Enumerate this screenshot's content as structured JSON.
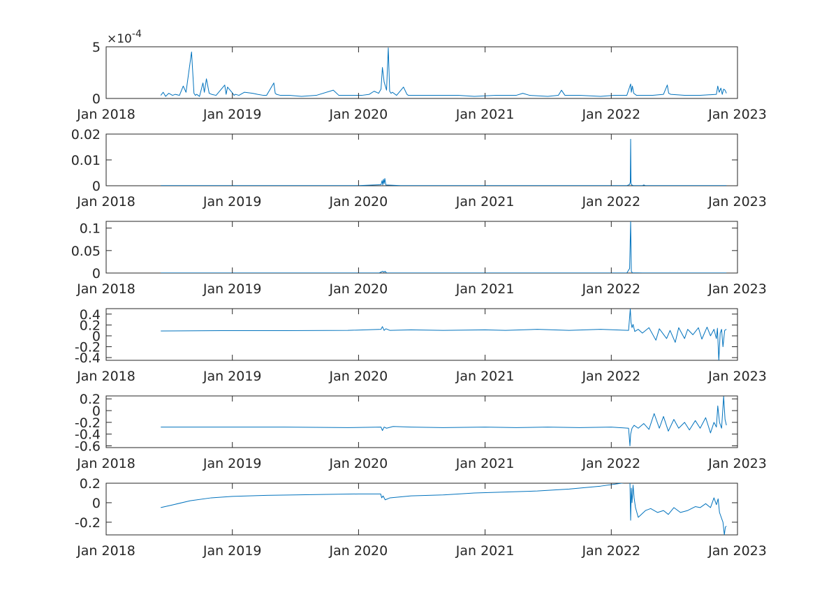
{
  "chart_data": [
    {
      "type": "line",
      "exponent_label": {
        "base": "×10",
        "power": "-4"
      },
      "x_range": [
        "2018-01-01",
        "2023-01-01"
      ],
      "x_ticks": [
        "Jan 2018",
        "Jan 2019",
        "Jan 2020",
        "Jan 2021",
        "Jan 2022",
        "Jan 2023"
      ],
      "ylim": [
        0,
        5
      ],
      "y_ticks": [
        0,
        5
      ],
      "y_tick_labels": [
        "0",
        "5"
      ],
      "grid": false,
      "series": [
        {
          "x": [
            "2018-06-08",
            "2018-06-15",
            "2018-06-22",
            "2018-07-01",
            "2018-07-12",
            "2018-07-20",
            "2018-08-01",
            "2018-08-12",
            "2018-08-20",
            "2018-09-05",
            "2018-09-12",
            "2018-09-16",
            "2018-09-20",
            "2018-09-28",
            "2018-10-08",
            "2018-10-12",
            "2018-10-18",
            "2018-10-26",
            "2018-11-02",
            "2018-11-15",
            "2018-12-10",
            "2018-12-14",
            "2018-12-18",
            "2019-01-02",
            "2019-01-06",
            "2019-01-10",
            "2019-01-20",
            "2019-02-05",
            "2019-03-01",
            "2019-03-15",
            "2019-04-01",
            "2019-04-10",
            "2019-05-01",
            "2019-05-05",
            "2019-05-09",
            "2019-05-20",
            "2019-06-15",
            "2019-07-20",
            "2019-09-01",
            "2019-10-20",
            "2019-11-05",
            "2019-11-12",
            "2019-12-01",
            "2020-01-10",
            "2020-02-01",
            "2020-02-15",
            "2020-02-28",
            "2020-03-06",
            "2020-03-10",
            "2020-03-15",
            "2020-03-22",
            "2020-03-27",
            "2020-03-31",
            "2020-04-04",
            "2020-04-08",
            "2020-04-20",
            "2020-05-10",
            "2020-05-20",
            "2020-05-24",
            "2020-06-10",
            "2020-07-15",
            "2020-09-01",
            "2020-10-15",
            "2020-12-01",
            "2021-02-01",
            "2021-04-01",
            "2021-04-20",
            "2021-05-10",
            "2021-07-01",
            "2021-08-01",
            "2021-08-10",
            "2021-08-20",
            "2021-10-01",
            "2021-12-01",
            "2022-01-10",
            "2022-02-15",
            "2022-02-26",
            "2022-02-28",
            "2022-03-03",
            "2022-03-07",
            "2022-03-15",
            "2022-04-10",
            "2022-05-01",
            "2022-06-01",
            "2022-06-12",
            "2022-06-16",
            "2022-06-22",
            "2022-08-01",
            "2022-09-15",
            "2022-11-01",
            "2022-11-05",
            "2022-11-09",
            "2022-11-14",
            "2022-11-18",
            "2022-11-22",
            "2022-11-26",
            "2022-11-30"
          ],
          "y": [
            0.3,
            0.6,
            0.2,
            0.5,
            0.3,
            0.4,
            0.3,
            1.2,
            0.6,
            4.5,
            0.5,
            0.3,
            0.4,
            0.2,
            1.5,
            0.6,
            1.9,
            0.5,
            0.4,
            0.3,
            1.3,
            0.4,
            1.1,
            0.5,
            0.3,
            0.4,
            0.3,
            0.6,
            0.5,
            0.4,
            0.3,
            0.3,
            1.5,
            0.5,
            0.4,
            0.3,
            0.3,
            0.2,
            0.3,
            0.8,
            0.3,
            0.3,
            0.3,
            0.3,
            0.4,
            0.7,
            0.5,
            0.9,
            3.0,
            1.6,
            0.8,
            4.9,
            0.7,
            0.5,
            0.6,
            0.3,
            1.1,
            0.4,
            0.3,
            0.3,
            0.3,
            0.3,
            0.3,
            0.2,
            0.3,
            0.3,
            0.5,
            0.3,
            0.2,
            0.3,
            0.8,
            0.3,
            0.3,
            0.2,
            0.3,
            0.3,
            1.4,
            0.6,
            1.2,
            0.5,
            0.3,
            0.3,
            0.3,
            0.4,
            1.3,
            0.5,
            0.4,
            0.3,
            0.3,
            0.4,
            1.2,
            0.6,
            1.0,
            0.4,
            0.9,
            0.8,
            0.5
          ]
        }
      ]
    },
    {
      "type": "line",
      "x_range": [
        "2018-01-01",
        "2023-01-01"
      ],
      "x_ticks": [
        "Jan 2018",
        "Jan 2019",
        "Jan 2020",
        "Jan 2021",
        "Jan 2022",
        "Jan 2023"
      ],
      "ylim": [
        0,
        0.02
      ],
      "y_ticks": [
        0,
        0.01,
        0.02
      ],
      "y_tick_labels": [
        "0",
        "0.01",
        "0.02"
      ],
      "grid": false,
      "series": [
        {
          "x": [
            "2018-06-08",
            "2019-06-01",
            "2020-01-01",
            "2020-03-06",
            "2020-03-09",
            "2020-03-11",
            "2020-03-13",
            "2020-03-15",
            "2020-03-17",
            "2020-03-20",
            "2020-05-01",
            "2021-01-01",
            "2022-02-15",
            "2022-02-23",
            "2022-02-25",
            "2022-02-26",
            "2022-02-27",
            "2022-03-01",
            "2022-03-05",
            "2022-04-01",
            "2022-04-05",
            "2022-04-10",
            "2022-11-30"
          ],
          "y": [
            5e-05,
            5e-05,
            5e-05,
            0.0004,
            0.002,
            0.0003,
            0.0025,
            0.0008,
            0.0028,
            0.0003,
            5e-05,
            5e-05,
            5e-05,
            0.0005,
            0.0015,
            0.018,
            0.0008,
            0.0003,
            0.0001,
            5e-05,
            0.0003,
            5e-05,
            5e-05
          ]
        }
      ]
    },
    {
      "type": "line",
      "x_range": [
        "2018-01-01",
        "2023-01-01"
      ],
      "x_ticks": [
        "Jan 2018",
        "Jan 2019",
        "Jan 2020",
        "Jan 2021",
        "Jan 2022",
        "Jan 2023"
      ],
      "ylim": [
        0,
        0.115
      ],
      "y_ticks": [
        0,
        0.05,
        0.1
      ],
      "y_tick_labels": [
        "0",
        "0.05",
        "0.1"
      ],
      "grid": false,
      "series": [
        {
          "x": [
            "2018-06-08",
            "2019-06-01",
            "2020-03-01",
            "2020-03-08",
            "2020-03-11",
            "2020-03-14",
            "2020-03-18",
            "2020-03-22",
            "2020-05-01",
            "2021-06-01",
            "2022-02-15",
            "2022-02-23",
            "2022-02-26",
            "2022-02-28",
            "2022-03-03",
            "2022-04-01",
            "2022-11-30"
          ],
          "y": [
            0.0002,
            0.0002,
            0.0002,
            0.003,
            0.004,
            0.002,
            0.004,
            0.0002,
            0.0002,
            0.0002,
            0.0002,
            0.01,
            0.115,
            0.004,
            0.0005,
            0.0002,
            0.0002
          ]
        }
      ]
    },
    {
      "type": "line",
      "x_range": [
        "2018-01-01",
        "2023-01-01"
      ],
      "x_ticks": [
        "Jan 2018",
        "Jan 2019",
        "Jan 2020",
        "Jan 2021",
        "Jan 2022",
        "Jan 2023"
      ],
      "ylim": [
        -0.45,
        0.5
      ],
      "y_ticks": [
        -0.4,
        -0.2,
        0,
        0.2,
        0.4
      ],
      "y_tick_labels": [
        "-0.4",
        "-0.2",
        "0",
        "0.2",
        "0.4"
      ],
      "grid": false,
      "series": [
        {
          "x": [
            "2018-06-08",
            "2018-12-01",
            "2019-06-01",
            "2019-12-01",
            "2020-03-06",
            "2020-03-10",
            "2020-03-15",
            "2020-03-20",
            "2020-04-01",
            "2020-06-01",
            "2020-09-01",
            "2021-01-01",
            "2021-03-01",
            "2021-06-01",
            "2021-09-01",
            "2021-12-01",
            "2022-02-20",
            "2022-02-25",
            "2022-02-27",
            "2022-03-02",
            "2022-03-05",
            "2022-03-10",
            "2022-03-20",
            "2022-04-01",
            "2022-04-20",
            "2022-05-10",
            "2022-05-20",
            "2022-06-10",
            "2022-06-20",
            "2022-07-05",
            "2022-07-15",
            "2022-08-01",
            "2022-08-10",
            "2022-08-25",
            "2022-09-10",
            "2022-09-20",
            "2022-10-05",
            "2022-10-15",
            "2022-10-25",
            "2022-11-01",
            "2022-11-04",
            "2022-11-08",
            "2022-11-12",
            "2022-11-16",
            "2022-11-20",
            "2022-11-25",
            "2022-11-30"
          ],
          "y": [
            0.09,
            0.095,
            0.095,
            0.1,
            0.12,
            0.17,
            0.1,
            0.13,
            0.1,
            0.11,
            0.1,
            0.11,
            0.1,
            0.12,
            0.1,
            0.12,
            0.1,
            0.5,
            0.25,
            0.15,
            0.21,
            0.08,
            0.12,
            0.05,
            0.15,
            -0.08,
            0.13,
            -0.05,
            0.1,
            -0.12,
            0.15,
            -0.05,
            0.12,
            0.02,
            0.15,
            -0.06,
            0.16,
            0.0,
            0.12,
            -0.05,
            0.14,
            -0.45,
            0.05,
            0.12,
            -0.2,
            0.1,
            0.12
          ]
        }
      ]
    },
    {
      "type": "line",
      "x_range": [
        "2018-01-01",
        "2023-01-01"
      ],
      "x_ticks": [
        "Jan 2018",
        "Jan 2019",
        "Jan 2020",
        "Jan 2021",
        "Jan 2022",
        "Jan 2023"
      ],
      "ylim": [
        -0.63,
        0.25
      ],
      "y_ticks": [
        -0.6,
        -0.4,
        -0.2,
        0,
        0.2
      ],
      "y_tick_labels": [
        "-0.6",
        "-0.4",
        "-0.2",
        "0",
        "0.2"
      ],
      "grid": false,
      "series": [
        {
          "x": [
            "2018-06-08",
            "2018-12-01",
            "2019-06-01",
            "2019-12-01",
            "2020-03-06",
            "2020-03-10",
            "2020-03-15",
            "2020-03-22",
            "2020-04-10",
            "2020-06-01",
            "2020-09-01",
            "2021-01-01",
            "2021-04-01",
            "2021-07-01",
            "2021-10-01",
            "2022-01-01",
            "2022-02-20",
            "2022-02-24",
            "2022-02-26",
            "2022-03-02",
            "2022-03-08",
            "2022-03-20",
            "2022-04-05",
            "2022-04-20",
            "2022-05-05",
            "2022-05-20",
            "2022-06-01",
            "2022-06-15",
            "2022-07-01",
            "2022-07-15",
            "2022-08-01",
            "2022-08-15",
            "2022-09-01",
            "2022-09-15",
            "2022-10-01",
            "2022-10-15",
            "2022-10-25",
            "2022-11-01",
            "2022-11-05",
            "2022-11-10",
            "2022-11-16",
            "2022-11-22",
            "2022-11-26",
            "2022-11-30"
          ],
          "y": [
            -0.28,
            -0.28,
            -0.28,
            -0.29,
            -0.28,
            -0.34,
            -0.28,
            -0.3,
            -0.27,
            -0.28,
            -0.29,
            -0.28,
            -0.29,
            -0.28,
            -0.29,
            -0.28,
            -0.3,
            -0.6,
            -0.4,
            -0.3,
            -0.25,
            -0.3,
            -0.22,
            -0.32,
            -0.05,
            -0.3,
            -0.1,
            -0.35,
            -0.15,
            -0.3,
            -0.2,
            -0.33,
            -0.17,
            -0.3,
            -0.12,
            -0.38,
            -0.2,
            -0.28,
            0.08,
            -0.2,
            -0.3,
            0.24,
            -0.15,
            -0.25
          ]
        }
      ]
    },
    {
      "type": "line",
      "x_range": [
        "2018-01-01",
        "2023-01-01"
      ],
      "x_ticks": [
        "Jan 2018",
        "Jan 2019",
        "Jan 2020",
        "Jan 2021",
        "Jan 2022",
        "Jan 2023"
      ],
      "ylim": [
        -0.33,
        0.2
      ],
      "y_ticks": [
        -0.2,
        0,
        0.2
      ],
      "y_tick_labels": [
        "-0.2",
        "0",
        "0.2"
      ],
      "grid": false,
      "series": [
        {
          "x": [
            "2018-06-08",
            "2018-07-15",
            "2018-09-01",
            "2018-11-01",
            "2019-01-01",
            "2019-04-01",
            "2019-07-01",
            "2019-10-01",
            "2020-01-01",
            "2020-03-05",
            "2020-03-08",
            "2020-03-12",
            "2020-03-18",
            "2020-04-01",
            "2020-06-01",
            "2020-09-01",
            "2020-12-01",
            "2021-03-01",
            "2021-06-01",
            "2021-09-01",
            "2021-12-01",
            "2022-02-20",
            "2022-02-24",
            "2022-02-26",
            "2022-02-28",
            "2022-03-02",
            "2022-03-05",
            "2022-03-08",
            "2022-03-12",
            "2022-03-20",
            "2022-04-10",
            "2022-04-25",
            "2022-05-15",
            "2022-06-01",
            "2022-06-15",
            "2022-07-01",
            "2022-07-20",
            "2022-08-10",
            "2022-09-01",
            "2022-09-15",
            "2022-10-01",
            "2022-10-15",
            "2022-10-25",
            "2022-11-01",
            "2022-11-06",
            "2022-11-10",
            "2022-11-15",
            "2022-11-20",
            "2022-11-24",
            "2022-11-27",
            "2022-11-30"
          ],
          "y": [
            -0.05,
            -0.02,
            0.02,
            0.05,
            0.065,
            0.075,
            0.08,
            0.085,
            0.09,
            0.09,
            0.05,
            0.07,
            0.03,
            0.05,
            0.07,
            0.08,
            0.1,
            0.11,
            0.12,
            0.14,
            0.17,
            0.21,
            0.2,
            -0.18,
            0.15,
            0.0,
            0.18,
            0.05,
            -0.05,
            -0.15,
            -0.08,
            -0.06,
            -0.1,
            -0.08,
            -0.12,
            -0.05,
            -0.1,
            -0.08,
            -0.04,
            -0.05,
            -0.01,
            -0.05,
            0.05,
            -0.02,
            0.04,
            -0.1,
            -0.15,
            -0.2,
            -0.33,
            -0.25,
            -0.24
          ]
        }
      ]
    }
  ]
}
